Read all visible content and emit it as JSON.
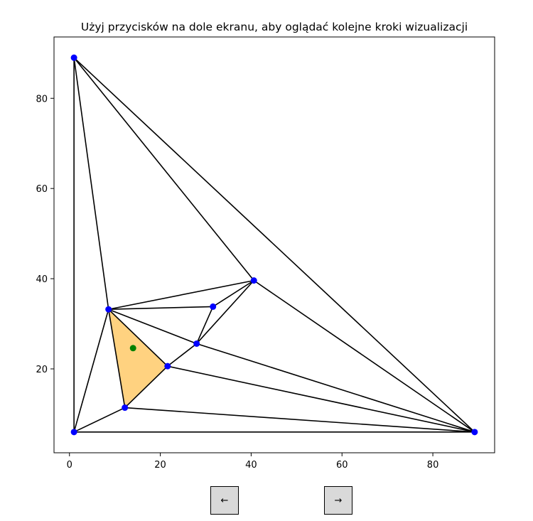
{
  "chart_data": {
    "type": "scatter",
    "title": "Użyj przycisków na dole ekranu, aby oglądać kolejne kroki wizualizacji",
    "xlabel": "",
    "ylabel": "",
    "xlim": [
      -3.4,
      93.6
    ],
    "ylim": [
      1.4,
      93.6
    ],
    "xticks": [
      0,
      20,
      40,
      60,
      80
    ],
    "yticks": [
      20,
      40,
      60,
      80
    ],
    "grid": false,
    "points": [
      {
        "x": 1.0,
        "y": 89.0
      },
      {
        "x": 1.0,
        "y": 6.0
      },
      {
        "x": 89.2,
        "y": 6.0
      },
      {
        "x": 8.6,
        "y": 33.2
      },
      {
        "x": 40.6,
        "y": 39.6
      },
      {
        "x": 31.6,
        "y": 33.8
      },
      {
        "x": 28.0,
        "y": 25.6
      },
      {
        "x": 21.6,
        "y": 20.6
      },
      {
        "x": 12.2,
        "y": 11.4
      }
    ],
    "edges": [
      [
        0,
        1
      ],
      [
        0,
        2
      ],
      [
        0,
        3
      ],
      [
        0,
        4
      ],
      [
        1,
        2
      ],
      [
        1,
        3
      ],
      [
        1,
        8
      ],
      [
        3,
        4
      ],
      [
        3,
        5
      ],
      [
        3,
        6
      ],
      [
        3,
        7
      ],
      [
        3,
        8
      ],
      [
        4,
        5
      ],
      [
        4,
        6
      ],
      [
        4,
        2
      ],
      [
        5,
        6
      ],
      [
        6,
        7
      ],
      [
        6,
        2
      ],
      [
        7,
        8
      ],
      [
        7,
        2
      ],
      [
        8,
        2
      ]
    ],
    "highlight_triangle": [
      3,
      7,
      8
    ],
    "query_point": {
      "x": 14.0,
      "y": 24.6
    },
    "colors": {
      "vertex": "#0000ff",
      "edge": "#000000",
      "highlight_fill": "#ffd280",
      "query_point": "#008000"
    }
  },
  "controls": {
    "prev_label": "←",
    "next_label": "→"
  }
}
